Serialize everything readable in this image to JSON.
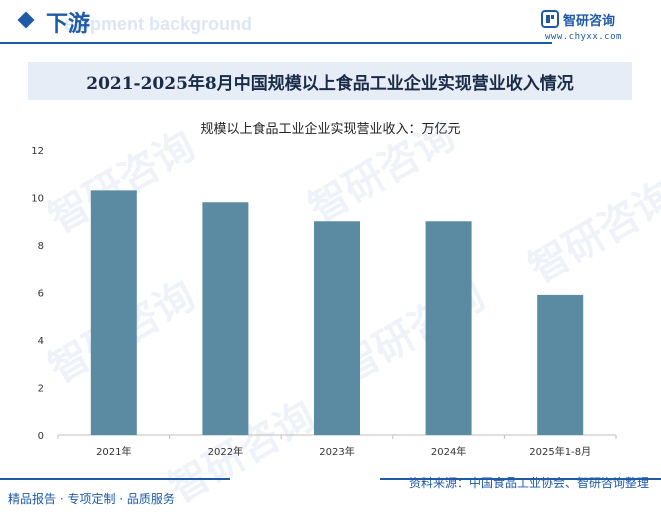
{
  "header": {
    "section_title": "下游",
    "bg_text": "elopment background",
    "brand_name": "智研咨询",
    "brand_url": "www.chyxx.com"
  },
  "main_title": "2021-2025年8月中国规模以上食品工业企业实现营业收入情况",
  "watermark_text": "智研咨询",
  "chart_data": {
    "type": "bar",
    "title": "规模以上食品工业企业实现营业收入：万亿元",
    "categories": [
      "2021年",
      "2022年",
      "2023年",
      "2024年",
      "2025年1-8月"
    ],
    "series": [
      {
        "values": [
          10.3,
          9.8,
          9.0,
          9.0,
          5.9
        ]
      }
    ],
    "ylim": [
      0,
      12
    ],
    "yticks": [
      0,
      2,
      4,
      6,
      8,
      10,
      12
    ],
    "xlabel": "",
    "ylabel": "",
    "grid": false,
    "bar_color": "#5b8aa3"
  },
  "footer": {
    "left_text": "精品报告 · 专项定制 · 品质服务",
    "source_text": "资料来源：中国食品工业协会、智研咨询整理"
  },
  "colors": {
    "accent": "#1e5aa8",
    "bar": "#5b8aa3",
    "title_bg": "#e6edf6"
  }
}
